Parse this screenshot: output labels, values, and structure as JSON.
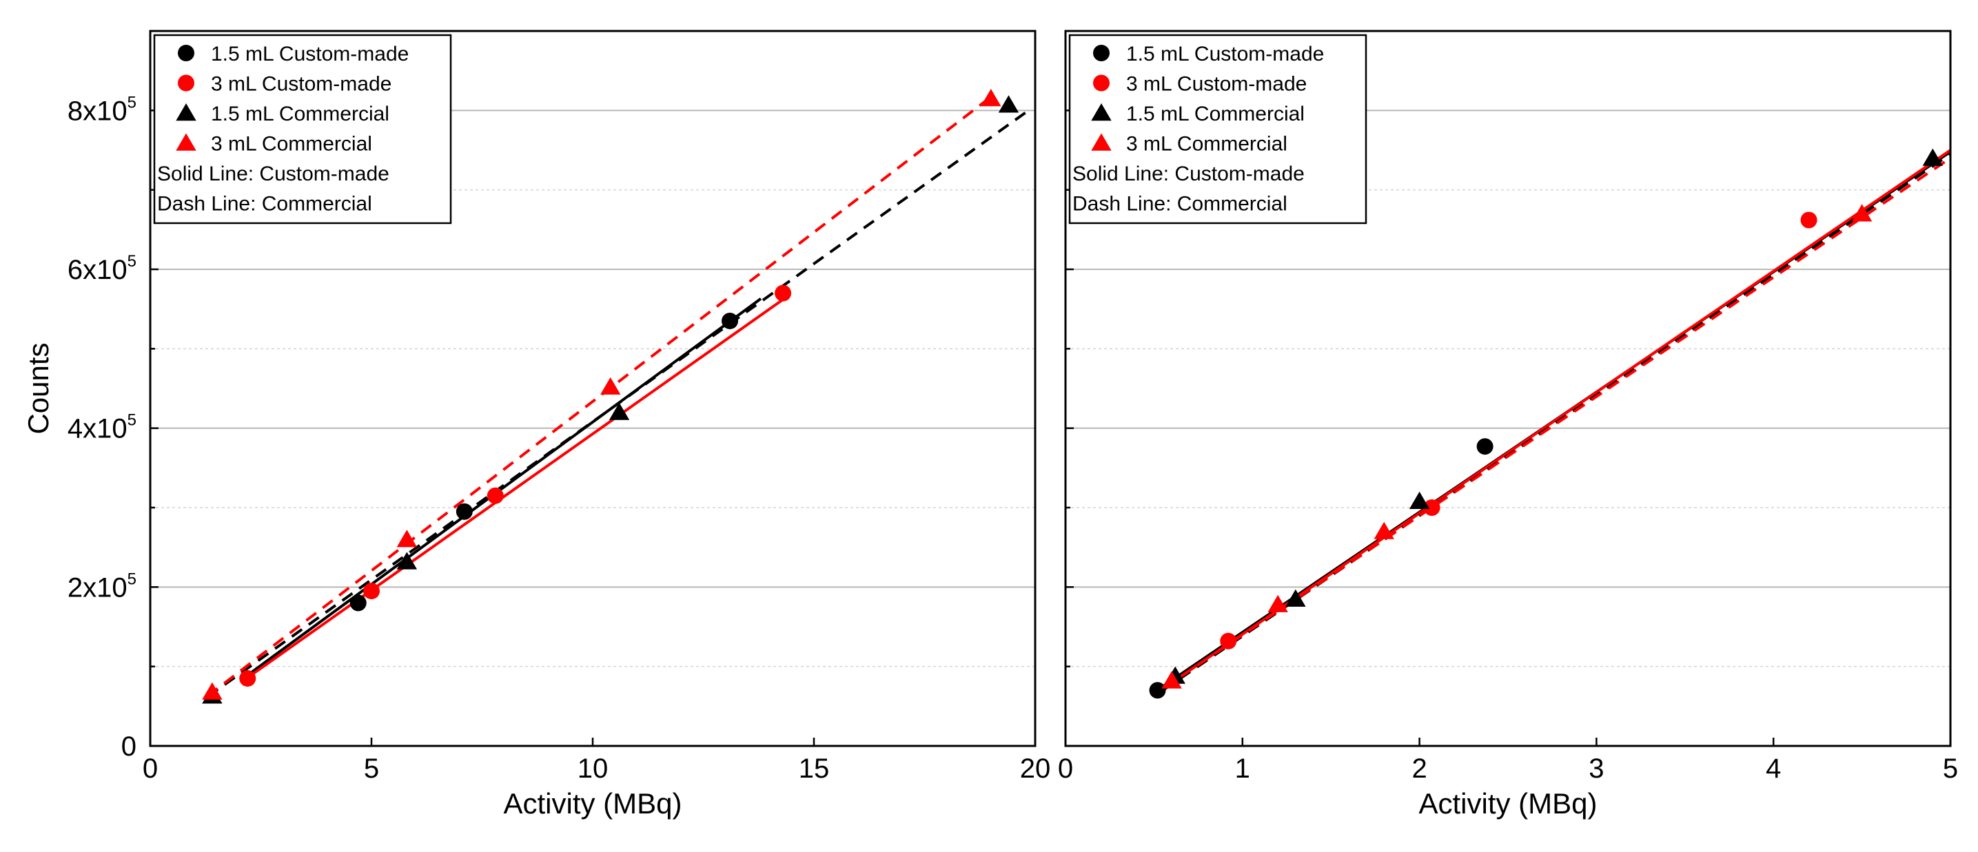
{
  "figure": {
    "colors": {
      "black": "#000000",
      "red": "#ff0000",
      "grid": "#b8b8b8"
    }
  },
  "chart_data": [
    {
      "type": "scatter",
      "panel": "left",
      "title": "",
      "xlabel": "Activity (MBq)",
      "ylabel": "Counts",
      "xlim": [
        0,
        20
      ],
      "ylim": [
        0,
        900000
      ],
      "x_ticks": [
        0,
        5,
        10,
        15,
        20
      ],
      "x_tick_labels": [
        "0",
        "5",
        "10",
        "15",
        "20"
      ],
      "y_ticks": [
        0,
        200000,
        400000,
        600000,
        800000
      ],
      "y_tick_labels": [
        {
          "base": "0",
          "exp": ""
        },
        {
          "base": "2x10",
          "exp": "5"
        },
        {
          "base": "4x10",
          "exp": "5"
        },
        {
          "base": "6x10",
          "exp": "5"
        },
        {
          "base": "8x10",
          "exp": "5"
        }
      ],
      "grid": true,
      "legend_position": "top-left",
      "legend_notes": [
        "Solid Line: Custom-made",
        "Dash Line: Commercial"
      ],
      "series": [
        {
          "name": "1.5 mL Custom-made",
          "marker": "circle",
          "color": "#000000",
          "points": [
            [
              4.7,
              180000
            ],
            [
              7.1,
              295000
            ],
            [
              13.1,
              535000
            ]
          ],
          "fit": {
            "style": "solid",
            "from": [
              2.1,
              85000
            ],
            "to": [
              13.8,
              563000
            ]
          }
        },
        {
          "name": "3 mL Custom-made",
          "marker": "circle",
          "color": "#ff0000",
          "points": [
            [
              2.2,
              85000
            ],
            [
              5.0,
              195000
            ],
            [
              7.8,
              315000
            ],
            [
              14.3,
              570000
            ]
          ],
          "fit": {
            "style": "solid",
            "from": [
              2.1,
              82000
            ],
            "to": [
              14.3,
              562000
            ]
          }
        },
        {
          "name": "1.5 mL Commercial",
          "marker": "triangle",
          "color": "#000000",
          "points": [
            [
              1.4,
              63000
            ],
            [
              5.8,
              232000
            ],
            [
              10.6,
              420000
            ],
            [
              19.4,
              807000
            ]
          ],
          "fit": {
            "style": "dashed",
            "from": [
              1.3,
              62000
            ],
            "to": [
              19.8,
              798000
            ]
          }
        },
        {
          "name": "3 mL Commercial",
          "marker": "triangle",
          "color": "#ff0000",
          "points": [
            [
              1.4,
              68000
            ],
            [
              5.8,
              260000
            ],
            [
              10.4,
              452000
            ],
            [
              19.0,
              815000
            ]
          ],
          "fit": {
            "style": "dashed",
            "from": [
              1.3,
              63000
            ],
            "to": [
              19.0,
              817000
            ]
          }
        }
      ]
    },
    {
      "type": "scatter",
      "panel": "right",
      "title": "",
      "xlabel": "Activity (MBq)",
      "ylabel": "",
      "xlim": [
        0,
        5
      ],
      "ylim": [
        0,
        900000
      ],
      "x_ticks": [
        0,
        1,
        2,
        3,
        4,
        5
      ],
      "x_tick_labels": [
        "0",
        "1",
        "2",
        "3",
        "4",
        "5"
      ],
      "y_ticks": [
        0,
        200000,
        400000,
        600000,
        800000
      ],
      "grid": true,
      "legend_position": "top-left",
      "legend_notes": [
        "Solid Line: Custom-made",
        "Dash Line: Commercial"
      ],
      "series": [
        {
          "name": "1.5 mL Custom-made",
          "marker": "circle",
          "color": "#000000",
          "points": [
            [
              0.52,
              70000
            ],
            [
              2.37,
              377000
            ]
          ],
          "fit": {
            "style": "solid",
            "from": [
              0.55,
              75000
            ],
            "to": [
              5.0,
              748000
            ]
          }
        },
        {
          "name": "3 mL Custom-made",
          "marker": "circle",
          "color": "#ff0000",
          "points": [
            [
              0.92,
              132000
            ],
            [
              2.07,
              300000
            ],
            [
              4.2,
              662000
            ]
          ],
          "fit": {
            "style": "solid",
            "from": [
              0.55,
              72000
            ],
            "to": [
              5.0,
              750000
            ]
          }
        },
        {
          "name": "1.5 mL Commercial",
          "marker": "triangle",
          "color": "#000000",
          "points": [
            [
              0.62,
              88000
            ],
            [
              1.3,
              185000
            ],
            [
              2.0,
              308000
            ],
            [
              4.9,
              740000
            ]
          ],
          "fit": {
            "style": "dashed",
            "from": [
              0.55,
              70000
            ],
            "to": [
              5.0,
              745000
            ]
          }
        },
        {
          "name": "3 mL Commercial",
          "marker": "triangle",
          "color": "#ff0000",
          "points": [
            [
              0.6,
              82000
            ],
            [
              1.2,
              178000
            ],
            [
              1.8,
              270000
            ],
            [
              4.5,
              670000
            ]
          ],
          "fit": {
            "style": "dashed",
            "from": [
              0.55,
              72000
            ],
            "to": [
              5.0,
              740000
            ]
          }
        }
      ]
    }
  ]
}
